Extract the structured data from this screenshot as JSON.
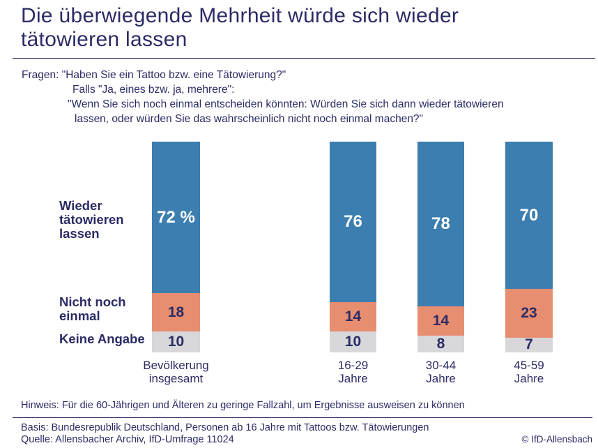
{
  "page": {
    "title": "Die überwiegende Mehrheit würde sich wieder\ntätowieren lassen",
    "copyright": "© IfD-Allensbach",
    "text_color": "#2B2B66"
  },
  "questions": {
    "line1": "Fragen: \"Haben Sie ein Tattoo bzw. eine Tätowierung?\"",
    "line2": "Falls \"Ja, eines bzw. ja, mehrere\":",
    "line3": "\"Wenn Sie sich noch einmal entscheiden könnten: Würden Sie sich dann wieder tätowieren",
    "line4": "lassen, oder würden Sie das wahrscheinlich nicht noch einmal machen?\""
  },
  "footer": {
    "hinweis": "Hinweis: Für die 60-Jährigen und Älteren zu geringe Fallzahl, um Ergebnisse ausweisen zu können",
    "basis": "Basis: Bundesrepublik Deutschland, Personen ab 16 Jahre mit Tattoos bzw. Tätowierungen",
    "quelle": "Quelle: Allensbacher Archiv, IfD-Umfrage 11024"
  },
  "chart_data": {
    "type": "bar",
    "stacked": true,
    "unit": "percent",
    "total_per_bar": 100,
    "legend_position": "left",
    "grid": false,
    "categories": [
      "Bevölkerung insgesamt",
      "16-29 Jahre",
      "30-44 Jahre",
      "45-59 Jahre"
    ],
    "category_lines": [
      [
        "Bevölkerung",
        "insgesamt"
      ],
      [
        "16-29",
        "Jahre"
      ],
      [
        "30-44",
        "Jahre"
      ],
      [
        "45-59",
        "Jahre"
      ]
    ],
    "series": [
      {
        "name": "Wieder tätowieren lassen",
        "label_lines": [
          "Wieder",
          "tätowieren",
          "lassen"
        ],
        "color": "#3C7EB0",
        "text_color": "#FFFFFF",
        "values": [
          72,
          76,
          78,
          70
        ],
        "value_labels": [
          "72 %",
          "76",
          "78",
          "70"
        ]
      },
      {
        "name": "Nicht noch einmal",
        "label_lines": [
          "Nicht noch",
          "einmal"
        ],
        "color": "#E78D70",
        "text_color": "#2B2B66",
        "values": [
          18,
          14,
          14,
          23
        ],
        "value_labels": [
          "18",
          "14",
          "14",
          "23"
        ]
      },
      {
        "name": "Keine Angabe",
        "label_lines": [
          "Keine Angabe"
        ],
        "color": "#D8D8DB",
        "text_color": "#2B2B66",
        "values": [
          10,
          10,
          8,
          7
        ],
        "value_labels": [
          "10",
          "10",
          "8",
          "7"
        ]
      }
    ]
  }
}
